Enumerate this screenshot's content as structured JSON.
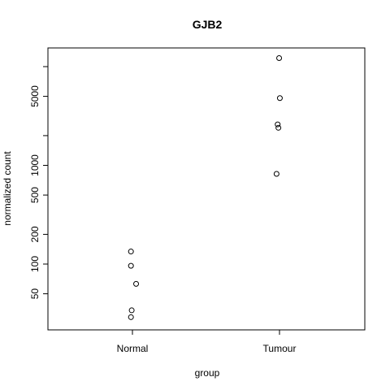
{
  "chart_data": {
    "type": "scatter",
    "title": "GJB2",
    "xlabel": "group",
    "ylabel": "normalized count",
    "categories": [
      "Normal",
      "Tumour"
    ],
    "y_scale": "log",
    "ylim": [
      25,
      15000
    ],
    "yticks": [
      50,
      100,
      200,
      500,
      1000,
      5000
    ],
    "grid": false,
    "series": [
      {
        "points": [
          {
            "category": "Normal",
            "jitter": -0.04,
            "y": 134
          },
          {
            "category": "Normal",
            "jitter": -0.04,
            "y": 96
          },
          {
            "category": "Normal",
            "jitter": 0.1,
            "y": 63
          },
          {
            "category": "Normal",
            "jitter": -0.02,
            "y": 34
          },
          {
            "category": "Normal",
            "jitter": -0.04,
            "y": 29
          },
          {
            "category": "Tumour",
            "jitter": -0.01,
            "y": 12200
          },
          {
            "category": "Tumour",
            "jitter": 0.01,
            "y": 4800
          },
          {
            "category": "Tumour",
            "jitter": -0.05,
            "y": 2600
          },
          {
            "category": "Tumour",
            "jitter": -0.03,
            "y": 2400
          },
          {
            "category": "Tumour",
            "jitter": -0.08,
            "y": 820
          }
        ]
      }
    ]
  }
}
